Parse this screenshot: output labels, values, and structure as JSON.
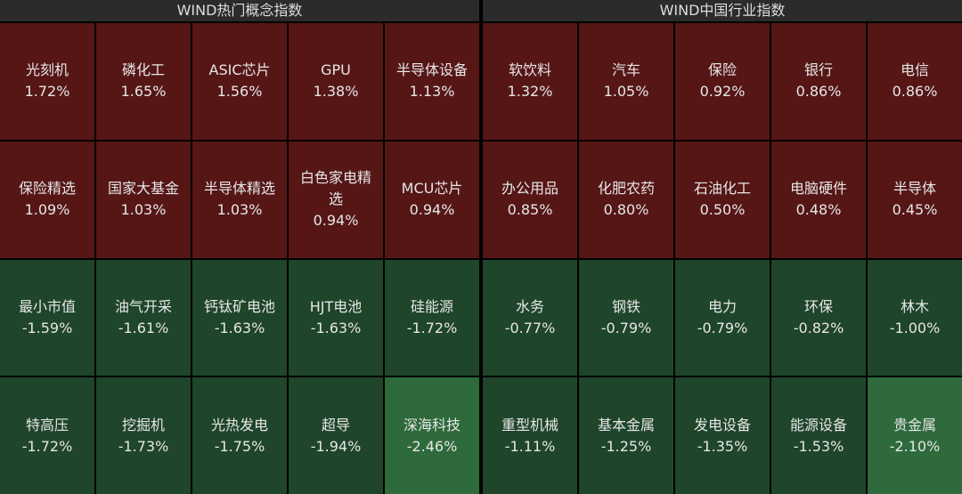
{
  "panels": [
    {
      "title": "WIND热门概念指数",
      "cells": [
        {
          "name": "光刻机",
          "change": "1.72%",
          "color": "#561616"
        },
        {
          "name": "磷化工",
          "change": "1.65%",
          "color": "#561616"
        },
        {
          "name": "ASIC芯片",
          "change": "1.56%",
          "color": "#561616"
        },
        {
          "name": "GPU",
          "change": "1.38%",
          "color": "#561616"
        },
        {
          "name": "半导体设备",
          "change": "1.13%",
          "color": "#561616"
        },
        {
          "name": "保险精选",
          "change": "1.09%",
          "color": "#561616"
        },
        {
          "name": "国家大基金",
          "change": "1.03%",
          "color": "#561616"
        },
        {
          "name": "半导体精选",
          "change": "1.03%",
          "color": "#561616"
        },
        {
          "name": "白色家电精选",
          "change": "0.94%",
          "color": "#561616"
        },
        {
          "name": "MCU芯片",
          "change": "0.94%",
          "color": "#561616"
        },
        {
          "name": "最小市值",
          "change": "-1.59%",
          "color": "#1f452a"
        },
        {
          "name": "油气开采",
          "change": "-1.61%",
          "color": "#1f452a"
        },
        {
          "name": "钙钛矿电池",
          "change": "-1.63%",
          "color": "#1f452a"
        },
        {
          "name": "HJT电池",
          "change": "-1.63%",
          "color": "#1f452a"
        },
        {
          "name": "硅能源",
          "change": "-1.72%",
          "color": "#1f452a"
        },
        {
          "name": "特高压",
          "change": "-1.72%",
          "color": "#1f452a"
        },
        {
          "name": "挖掘机",
          "change": "-1.73%",
          "color": "#1f452a"
        },
        {
          "name": "光热发电",
          "change": "-1.75%",
          "color": "#1f452a"
        },
        {
          "name": "超导",
          "change": "-1.94%",
          "color": "#1f452a"
        },
        {
          "name": "深海科技",
          "change": "-2.46%",
          "color": "#2e6a3b"
        }
      ]
    },
    {
      "title": "WIND中国行业指数",
      "cells": [
        {
          "name": "软饮料",
          "change": "1.32%",
          "color": "#561616"
        },
        {
          "name": "汽车",
          "change": "1.05%",
          "color": "#561616"
        },
        {
          "name": "保险",
          "change": "0.92%",
          "color": "#561616"
        },
        {
          "name": "银行",
          "change": "0.86%",
          "color": "#561616"
        },
        {
          "name": "电信",
          "change": "0.86%",
          "color": "#561616"
        },
        {
          "name": "办公用品",
          "change": "0.85%",
          "color": "#561616"
        },
        {
          "name": "化肥农药",
          "change": "0.80%",
          "color": "#561616"
        },
        {
          "name": "石油化工",
          "change": "0.50%",
          "color": "#561616"
        },
        {
          "name": "电脑硬件",
          "change": "0.48%",
          "color": "#561616"
        },
        {
          "name": "半导体",
          "change": "0.45%",
          "color": "#561616"
        },
        {
          "name": "水务",
          "change": "-0.77%",
          "color": "#1f452a"
        },
        {
          "name": "钢铁",
          "change": "-0.79%",
          "color": "#1f452a"
        },
        {
          "name": "电力",
          "change": "-0.79%",
          "color": "#1f452a"
        },
        {
          "name": "环保",
          "change": "-0.82%",
          "color": "#1f452a"
        },
        {
          "name": "林木",
          "change": "-1.00%",
          "color": "#1f452a"
        },
        {
          "name": "重型机械",
          "change": "-1.11%",
          "color": "#1f452a"
        },
        {
          "name": "基本金属",
          "change": "-1.25%",
          "color": "#1f452a"
        },
        {
          "name": "发电设备",
          "change": "-1.35%",
          "color": "#1f452a"
        },
        {
          "name": "能源设备",
          "change": "-1.53%",
          "color": "#1f452a"
        },
        {
          "name": "贵金属",
          "change": "-2.10%",
          "color": "#2e6a3b"
        }
      ]
    }
  ]
}
